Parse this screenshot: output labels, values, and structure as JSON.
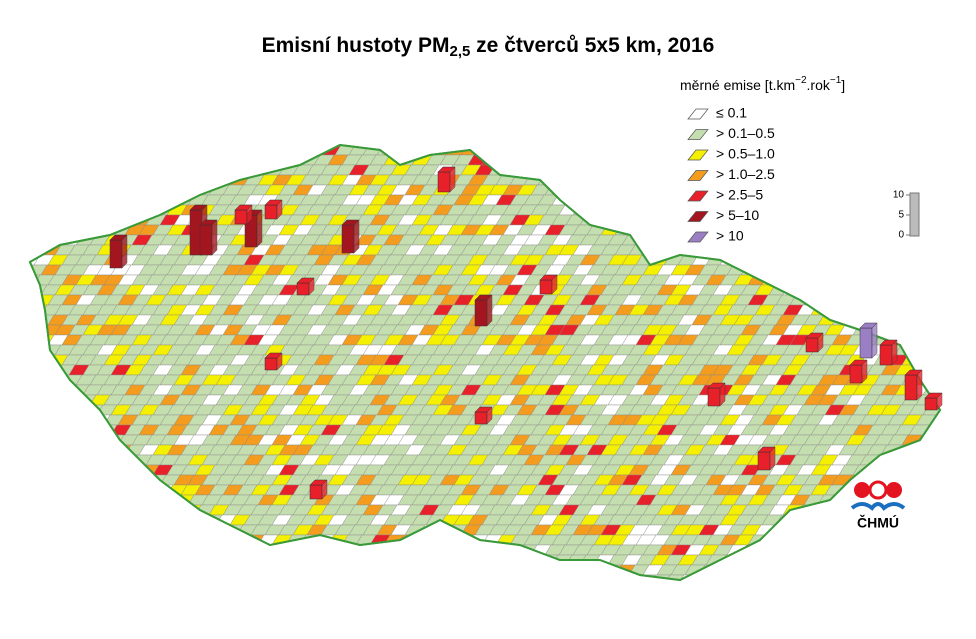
{
  "title": {
    "main": "Emisní hustoty PM",
    "sub": "2,5",
    "rest": " ze čtverců 5x5 km, 2016"
  },
  "legend": {
    "title": {
      "a": "měrné emise [t.km",
      "b": "−2",
      "c": ".rok",
      "d": "−1",
      "e": "]"
    },
    "items": [
      {
        "label": "≤ 0.1",
        "color": "#ffffff"
      },
      {
        "label": "> 0.1–0.5",
        "color": "#c5deb0"
      },
      {
        "label": "> 0.5–1.0",
        "color": "#f5f000"
      },
      {
        "label": "> 1.0–2.5",
        "color": "#f39c1e"
      },
      {
        "label": "> 2.5–5",
        "color": "#e8202a"
      },
      {
        "label": "> 5–10",
        "color": "#a4161f"
      },
      {
        "label": "> 10",
        "color": "#9a7fc4"
      }
    ]
  },
  "scale": {
    "ticks": [
      10,
      5,
      0
    ]
  },
  "logo": "ČHMÚ"
}
